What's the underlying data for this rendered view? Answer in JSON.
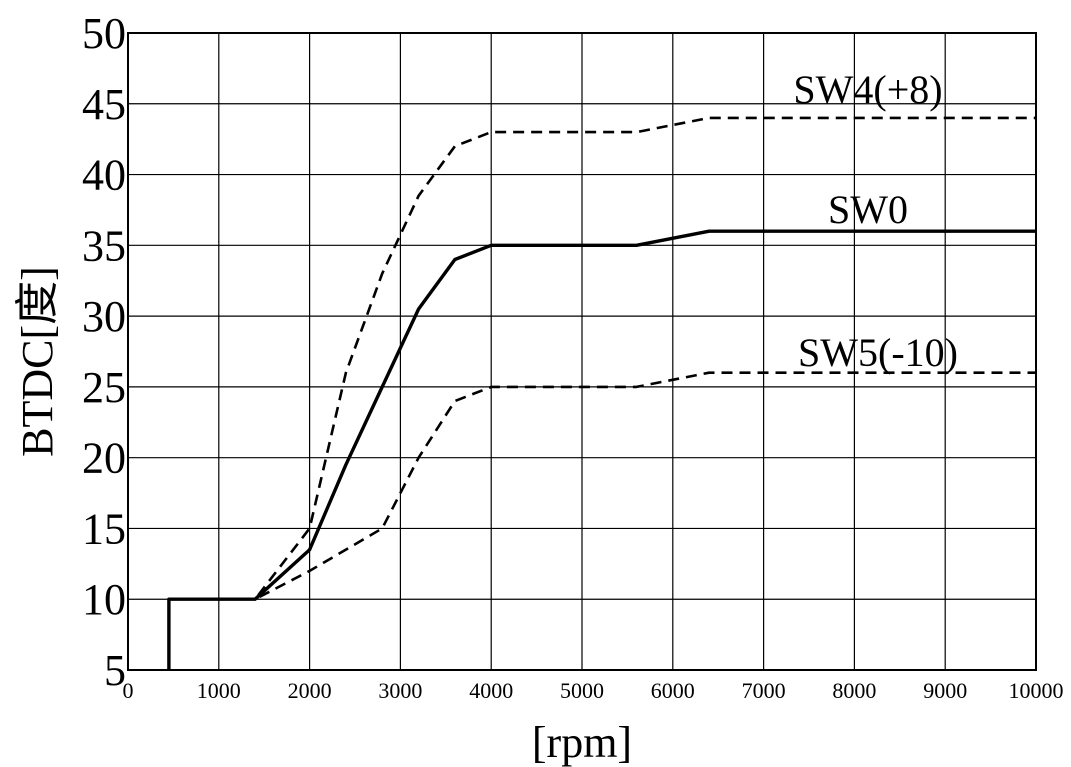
{
  "chart_data": {
    "type": "line",
    "title": "",
    "xlabel": "[rpm]",
    "ylabel": "BTDC[度]",
    "xlim": [
      0,
      10000
    ],
    "ylim": [
      5,
      50
    ],
    "x_ticks": [
      0,
      1000,
      2000,
      3000,
      4000,
      5000,
      6000,
      7000,
      8000,
      9000,
      10000
    ],
    "y_ticks": [
      5,
      10,
      15,
      20,
      25,
      30,
      35,
      40,
      45,
      50
    ],
    "grid": true,
    "legend": "none",
    "series": [
      {
        "name": "SW4(+8)",
        "style": "dashed",
        "color": "#000000",
        "points": [
          [
            450,
            5
          ],
          [
            450,
            10
          ],
          [
            1400,
            10
          ],
          [
            2000,
            15
          ],
          [
            2400,
            26
          ],
          [
            2800,
            33
          ],
          [
            3200,
            38.5
          ],
          [
            3600,
            42
          ],
          [
            4000,
            43
          ],
          [
            5600,
            43
          ],
          [
            6400,
            44
          ],
          [
            10000,
            44
          ]
        ]
      },
      {
        "name": "SW0",
        "style": "solid",
        "color": "#000000",
        "points": [
          [
            450,
            5
          ],
          [
            450,
            10
          ],
          [
            1400,
            10
          ],
          [
            2000,
            13.5
          ],
          [
            2400,
            19.5
          ],
          [
            2800,
            25
          ],
          [
            3200,
            30.5
          ],
          [
            3600,
            34
          ],
          [
            4000,
            35
          ],
          [
            5600,
            35
          ],
          [
            6400,
            36
          ],
          [
            10000,
            36
          ]
        ]
      },
      {
        "name": "SW5(-10)",
        "style": "dashed",
        "color": "#000000",
        "points": [
          [
            450,
            5
          ],
          [
            450,
            10
          ],
          [
            1400,
            10
          ],
          [
            2000,
            12
          ],
          [
            2800,
            15
          ],
          [
            3200,
            20
          ],
          [
            3600,
            24
          ],
          [
            4000,
            25
          ],
          [
            5600,
            25
          ],
          [
            6400,
            26
          ],
          [
            10000,
            26
          ]
        ]
      }
    ]
  }
}
